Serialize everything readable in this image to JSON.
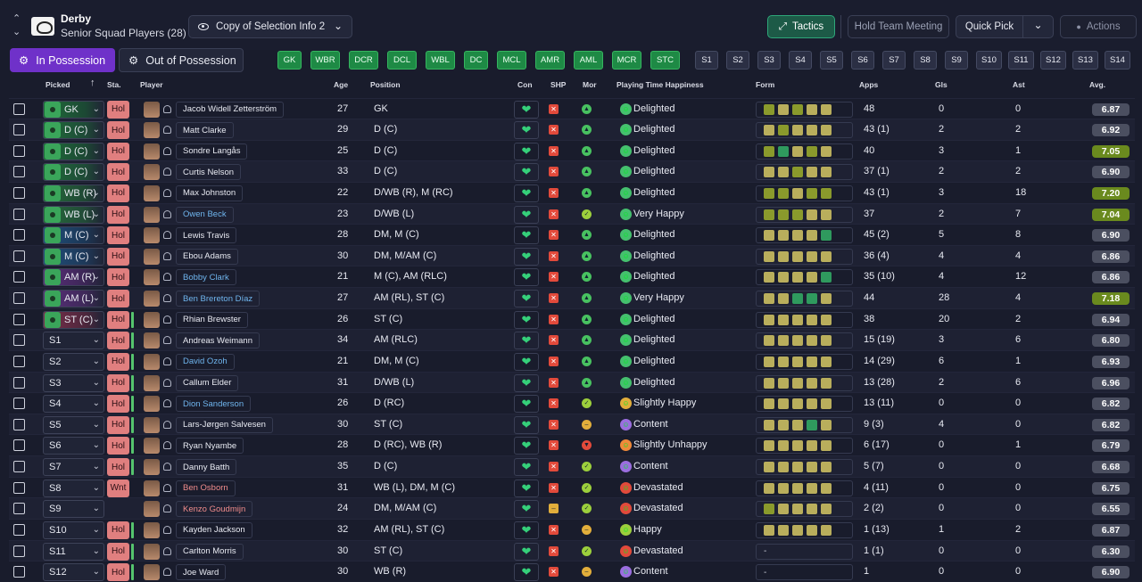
{
  "header": {
    "club": "Derby",
    "squad": "Senior Squad Players (28)",
    "view": "Copy of Selection Info 2",
    "tactics": "Tactics",
    "meeting": "Hold Team Meeting",
    "quick_pick": "Quick Pick",
    "actions": "Actions"
  },
  "tabs": {
    "in": "In Possession",
    "out": "Out of Possession"
  },
  "positions_on": [
    "GK",
    "WBR",
    "DCR",
    "DCL",
    "WBL",
    "DC",
    "MCL",
    "AMR",
    "AML",
    "MCR",
    "STC"
  ],
  "positions_off": [
    "S1",
    "S2",
    "S3",
    "S4",
    "S5",
    "S6",
    "S7",
    "S8",
    "S9",
    "S10",
    "S11",
    "S12",
    "S13",
    "S14"
  ],
  "columns": {
    "picked": "Picked",
    "sta": "Sta.",
    "player": "Player",
    "age": "Age",
    "position": "Position",
    "con": "Con",
    "shp": "SHP",
    "mor": "Mor",
    "happiness": "Playing Time Happiness",
    "form": "Form",
    "apps": "Apps",
    "gls": "Gls",
    "ast": "Ast",
    "avg": "Avg."
  },
  "colors": {
    "form_olive": "#8a9a2c",
    "form_khaki": "#b9ae5c",
    "form_green": "#2f9a5e",
    "avg_grey": "#4b4f60",
    "avg_green": "#6a8a1e"
  },
  "rows": [
    {
      "pick": "GK",
      "sta": "Hol",
      "name": "Jacob Widell Zetterström",
      "nc": "",
      "age": "27",
      "pos": "GK",
      "shp": "x",
      "mor": "up",
      "hap": "Delighted",
      "form": [
        "o",
        "k",
        "o",
        "k",
        "k"
      ],
      "apps": "48",
      "gls": "0",
      "ast": "0",
      "avg": "6.87",
      "hi": false
    },
    {
      "pick": "D (C)",
      "sta": "Hol",
      "name": "Matt Clarke",
      "nc": "",
      "age": "29",
      "pos": "D (C)",
      "shp": "x",
      "mor": "up",
      "hap": "Delighted",
      "form": [
        "k",
        "o",
        "k",
        "k",
        "k"
      ],
      "apps": "43 (1)",
      "gls": "2",
      "ast": "2",
      "avg": "6.92",
      "hi": false
    },
    {
      "pick": "D (C)",
      "sta": "Hol",
      "name": "Sondre Langås",
      "nc": "",
      "age": "25",
      "pos": "D (C)",
      "shp": "x",
      "mor": "up",
      "hap": "Delighted",
      "form": [
        "o",
        "g",
        "k",
        "o",
        "k"
      ],
      "apps": "40",
      "gls": "3",
      "ast": "1",
      "avg": "7.05",
      "hi": true
    },
    {
      "pick": "D (C)",
      "sta": "Hol",
      "name": "Curtis Nelson",
      "nc": "",
      "age": "33",
      "pos": "D (C)",
      "shp": "x",
      "mor": "up",
      "hap": "Delighted",
      "form": [
        "k",
        "k",
        "o",
        "k",
        "k"
      ],
      "apps": "37 (1)",
      "gls": "2",
      "ast": "2",
      "avg": "6.90",
      "hi": false
    },
    {
      "pick": "WB (R)",
      "sta": "Hol",
      "name": "Max Johnston",
      "nc": "",
      "age": "22",
      "pos": "D/WB (R), M (RC)",
      "shp": "x",
      "mor": "up",
      "hap": "Delighted",
      "form": [
        "o",
        "o",
        "k",
        "o",
        "o"
      ],
      "apps": "43 (1)",
      "gls": "3",
      "ast": "18",
      "avg": "7.20",
      "hi": true
    },
    {
      "pick": "WB (L)",
      "sta": "Hol",
      "name": "Owen Beck",
      "nc": "link",
      "age": "23",
      "pos": "D/WB (L)",
      "shp": "x",
      "mor": "ok",
      "hap": "Very Happy",
      "form": [
        "o",
        "o",
        "o",
        "k",
        "k"
      ],
      "apps": "37",
      "gls": "2",
      "ast": "7",
      "avg": "7.04",
      "hi": true
    },
    {
      "pick": "M (C)",
      "sta": "Hol",
      "name": "Lewis Travis",
      "nc": "",
      "age": "28",
      "pos": "DM, M (C)",
      "shp": "x",
      "mor": "up",
      "hap": "Delighted",
      "form": [
        "k",
        "k",
        "k",
        "k",
        "g"
      ],
      "apps": "45 (2)",
      "gls": "5",
      "ast": "8",
      "avg": "6.90",
      "hi": false
    },
    {
      "pick": "M (C)",
      "sta": "Hol",
      "name": "Ebou Adams",
      "nc": "",
      "age": "30",
      "pos": "DM, M/AM (C)",
      "shp": "x",
      "mor": "up",
      "hap": "Delighted",
      "form": [
        "k",
        "k",
        "k",
        "k",
        "k"
      ],
      "apps": "36 (4)",
      "gls": "4",
      "ast": "4",
      "avg": "6.86",
      "hi": false
    },
    {
      "pick": "AM (R)",
      "sta": "Hol",
      "name": "Bobby Clark",
      "nc": "link",
      "age": "21",
      "pos": "M (C), AM (RLC)",
      "shp": "x",
      "mor": "up",
      "hap": "Delighted",
      "form": [
        "k",
        "k",
        "k",
        "k",
        "g"
      ],
      "apps": "35 (10)",
      "gls": "4",
      "ast": "12",
      "avg": "6.86",
      "hi": false
    },
    {
      "pick": "AM (L)",
      "sta": "Hol",
      "name": "Ben Brereton Díaz",
      "nc": "link",
      "age": "27",
      "pos": "AM (RL), ST (C)",
      "shp": "x",
      "mor": "up",
      "hap": "Very Happy",
      "form": [
        "k",
        "k",
        "g",
        "g",
        "k"
      ],
      "apps": "44",
      "gls": "28",
      "ast": "4",
      "avg": "7.18",
      "hi": true
    },
    {
      "pick": "ST (C)",
      "sta": "Hol",
      "name": "Rhian Brewster",
      "nc": "",
      "age": "26",
      "pos": "ST (C)",
      "shp": "x",
      "mor": "up",
      "hap": "Delighted",
      "form": [
        "k",
        "k",
        "k",
        "k",
        "k"
      ],
      "apps": "38",
      "gls": "20",
      "ast": "2",
      "avg": "6.94",
      "hi": false
    },
    {
      "pick": "S1",
      "sta": "Hol",
      "name": "Andreas Weimann",
      "nc": "",
      "age": "34",
      "pos": "AM (RLC)",
      "shp": "x",
      "mor": "up",
      "hap": "Delighted",
      "form": [
        "k",
        "k",
        "k",
        "k",
        "k"
      ],
      "apps": "15 (19)",
      "gls": "3",
      "ast": "6",
      "avg": "6.80",
      "hi": false
    },
    {
      "pick": "S2",
      "sta": "Hol",
      "name": "David Ozoh",
      "nc": "link",
      "age": "21",
      "pos": "DM, M (C)",
      "shp": "x",
      "mor": "up",
      "hap": "Delighted",
      "form": [
        "k",
        "k",
        "k",
        "k",
        "k"
      ],
      "apps": "14 (29)",
      "gls": "6",
      "ast": "1",
      "avg": "6.93",
      "hi": false
    },
    {
      "pick": "S3",
      "sta": "Hol",
      "name": "Callum Elder",
      "nc": "",
      "age": "31",
      "pos": "D/WB (L)",
      "shp": "x",
      "mor": "up",
      "hap": "Delighted",
      "form": [
        "k",
        "k",
        "k",
        "k",
        "k"
      ],
      "apps": "13 (28)",
      "gls": "2",
      "ast": "6",
      "avg": "6.96",
      "hi": false
    },
    {
      "pick": "S4",
      "sta": "Hol",
      "name": "Dion Sanderson",
      "nc": "link",
      "age": "26",
      "pos": "D (RC)",
      "shp": "x",
      "mor": "ok",
      "hap": "Slightly Happy",
      "form": [
        "k",
        "k",
        "k",
        "k",
        "k"
      ],
      "apps": "13 (11)",
      "gls": "0",
      "ast": "0",
      "avg": "6.82",
      "hi": false
    },
    {
      "pick": "S5",
      "sta": "Hol",
      "name": "Lars-Jørgen Salvesen",
      "nc": "",
      "age": "30",
      "pos": "ST (C)",
      "shp": "x",
      "mor": "mid",
      "hap": "Content",
      "form": [
        "k",
        "k",
        "k",
        "g",
        "k"
      ],
      "apps": "9 (3)",
      "gls": "4",
      "ast": "0",
      "avg": "6.82",
      "hi": false
    },
    {
      "pick": "S6",
      "sta": "Hol",
      "name": "Ryan Nyambe",
      "nc": "",
      "age": "28",
      "pos": "D (RC), WB (R)",
      "shp": "x",
      "mor": "down",
      "hap": "Slightly Unhappy",
      "form": [
        "k",
        "k",
        "k",
        "k",
        "k"
      ],
      "apps": "6 (17)",
      "gls": "0",
      "ast": "1",
      "avg": "6.79",
      "hi": false
    },
    {
      "pick": "S7",
      "sta": "Hol",
      "name": "Danny Batth",
      "nc": "",
      "age": "35",
      "pos": "D (C)",
      "shp": "x",
      "mor": "ok",
      "hap": "Content",
      "form": [
        "k",
        "k",
        "k",
        "k",
        "k"
      ],
      "apps": "5 (7)",
      "gls": "0",
      "ast": "0",
      "avg": "6.68",
      "hi": false
    },
    {
      "pick": "S8",
      "sta": "Wnt",
      "name": "Ben Osborn",
      "nc": "loan",
      "age": "31",
      "pos": "WB (L), DM, M (C)",
      "shp": "x",
      "mor": "ok",
      "hap": "Devastated",
      "form": [
        "k",
        "k",
        "k",
        "k",
        "k"
      ],
      "apps": "4 (11)",
      "gls": "0",
      "ast": "0",
      "avg": "6.75",
      "hi": false
    },
    {
      "pick": "S9",
      "sta": "",
      "name": "Kenzo Goudmijn",
      "nc": "loan",
      "age": "24",
      "pos": "DM, M/AM (C)",
      "shp": "mid",
      "mor": "ok",
      "hap": "Devastated",
      "form": [
        "o",
        "k",
        "k",
        "k",
        "k"
      ],
      "apps": "2 (2)",
      "gls": "0",
      "ast": "0",
      "avg": "6.55",
      "hi": false
    },
    {
      "pick": "S10",
      "sta": "Hol",
      "name": "Kayden Jackson",
      "nc": "",
      "age": "32",
      "pos": "AM (RL), ST (C)",
      "shp": "x",
      "mor": "mid",
      "hap": "Happy",
      "form": [
        "k",
        "k",
        "k",
        "k",
        "k"
      ],
      "apps": "1 (13)",
      "gls": "1",
      "ast": "2",
      "avg": "6.87",
      "hi": false
    },
    {
      "pick": "S11",
      "sta": "Hol",
      "name": "Carlton Morris",
      "nc": "",
      "age": "30",
      "pos": "ST (C)",
      "shp": "x",
      "mor": "ok",
      "hap": "Devastated",
      "form": [
        "-"
      ],
      "apps": "1 (1)",
      "gls": "0",
      "ast": "0",
      "avg": "6.30",
      "hi": false
    },
    {
      "pick": "S12",
      "sta": "Hol",
      "name": "Joe Ward",
      "nc": "",
      "age": "30",
      "pos": "WB (R)",
      "shp": "x",
      "mor": "mid",
      "hap": "Content",
      "form": [
        "-"
      ],
      "apps": "1",
      "gls": "0",
      "ast": "0",
      "avg": "6.90",
      "hi": false
    }
  ]
}
